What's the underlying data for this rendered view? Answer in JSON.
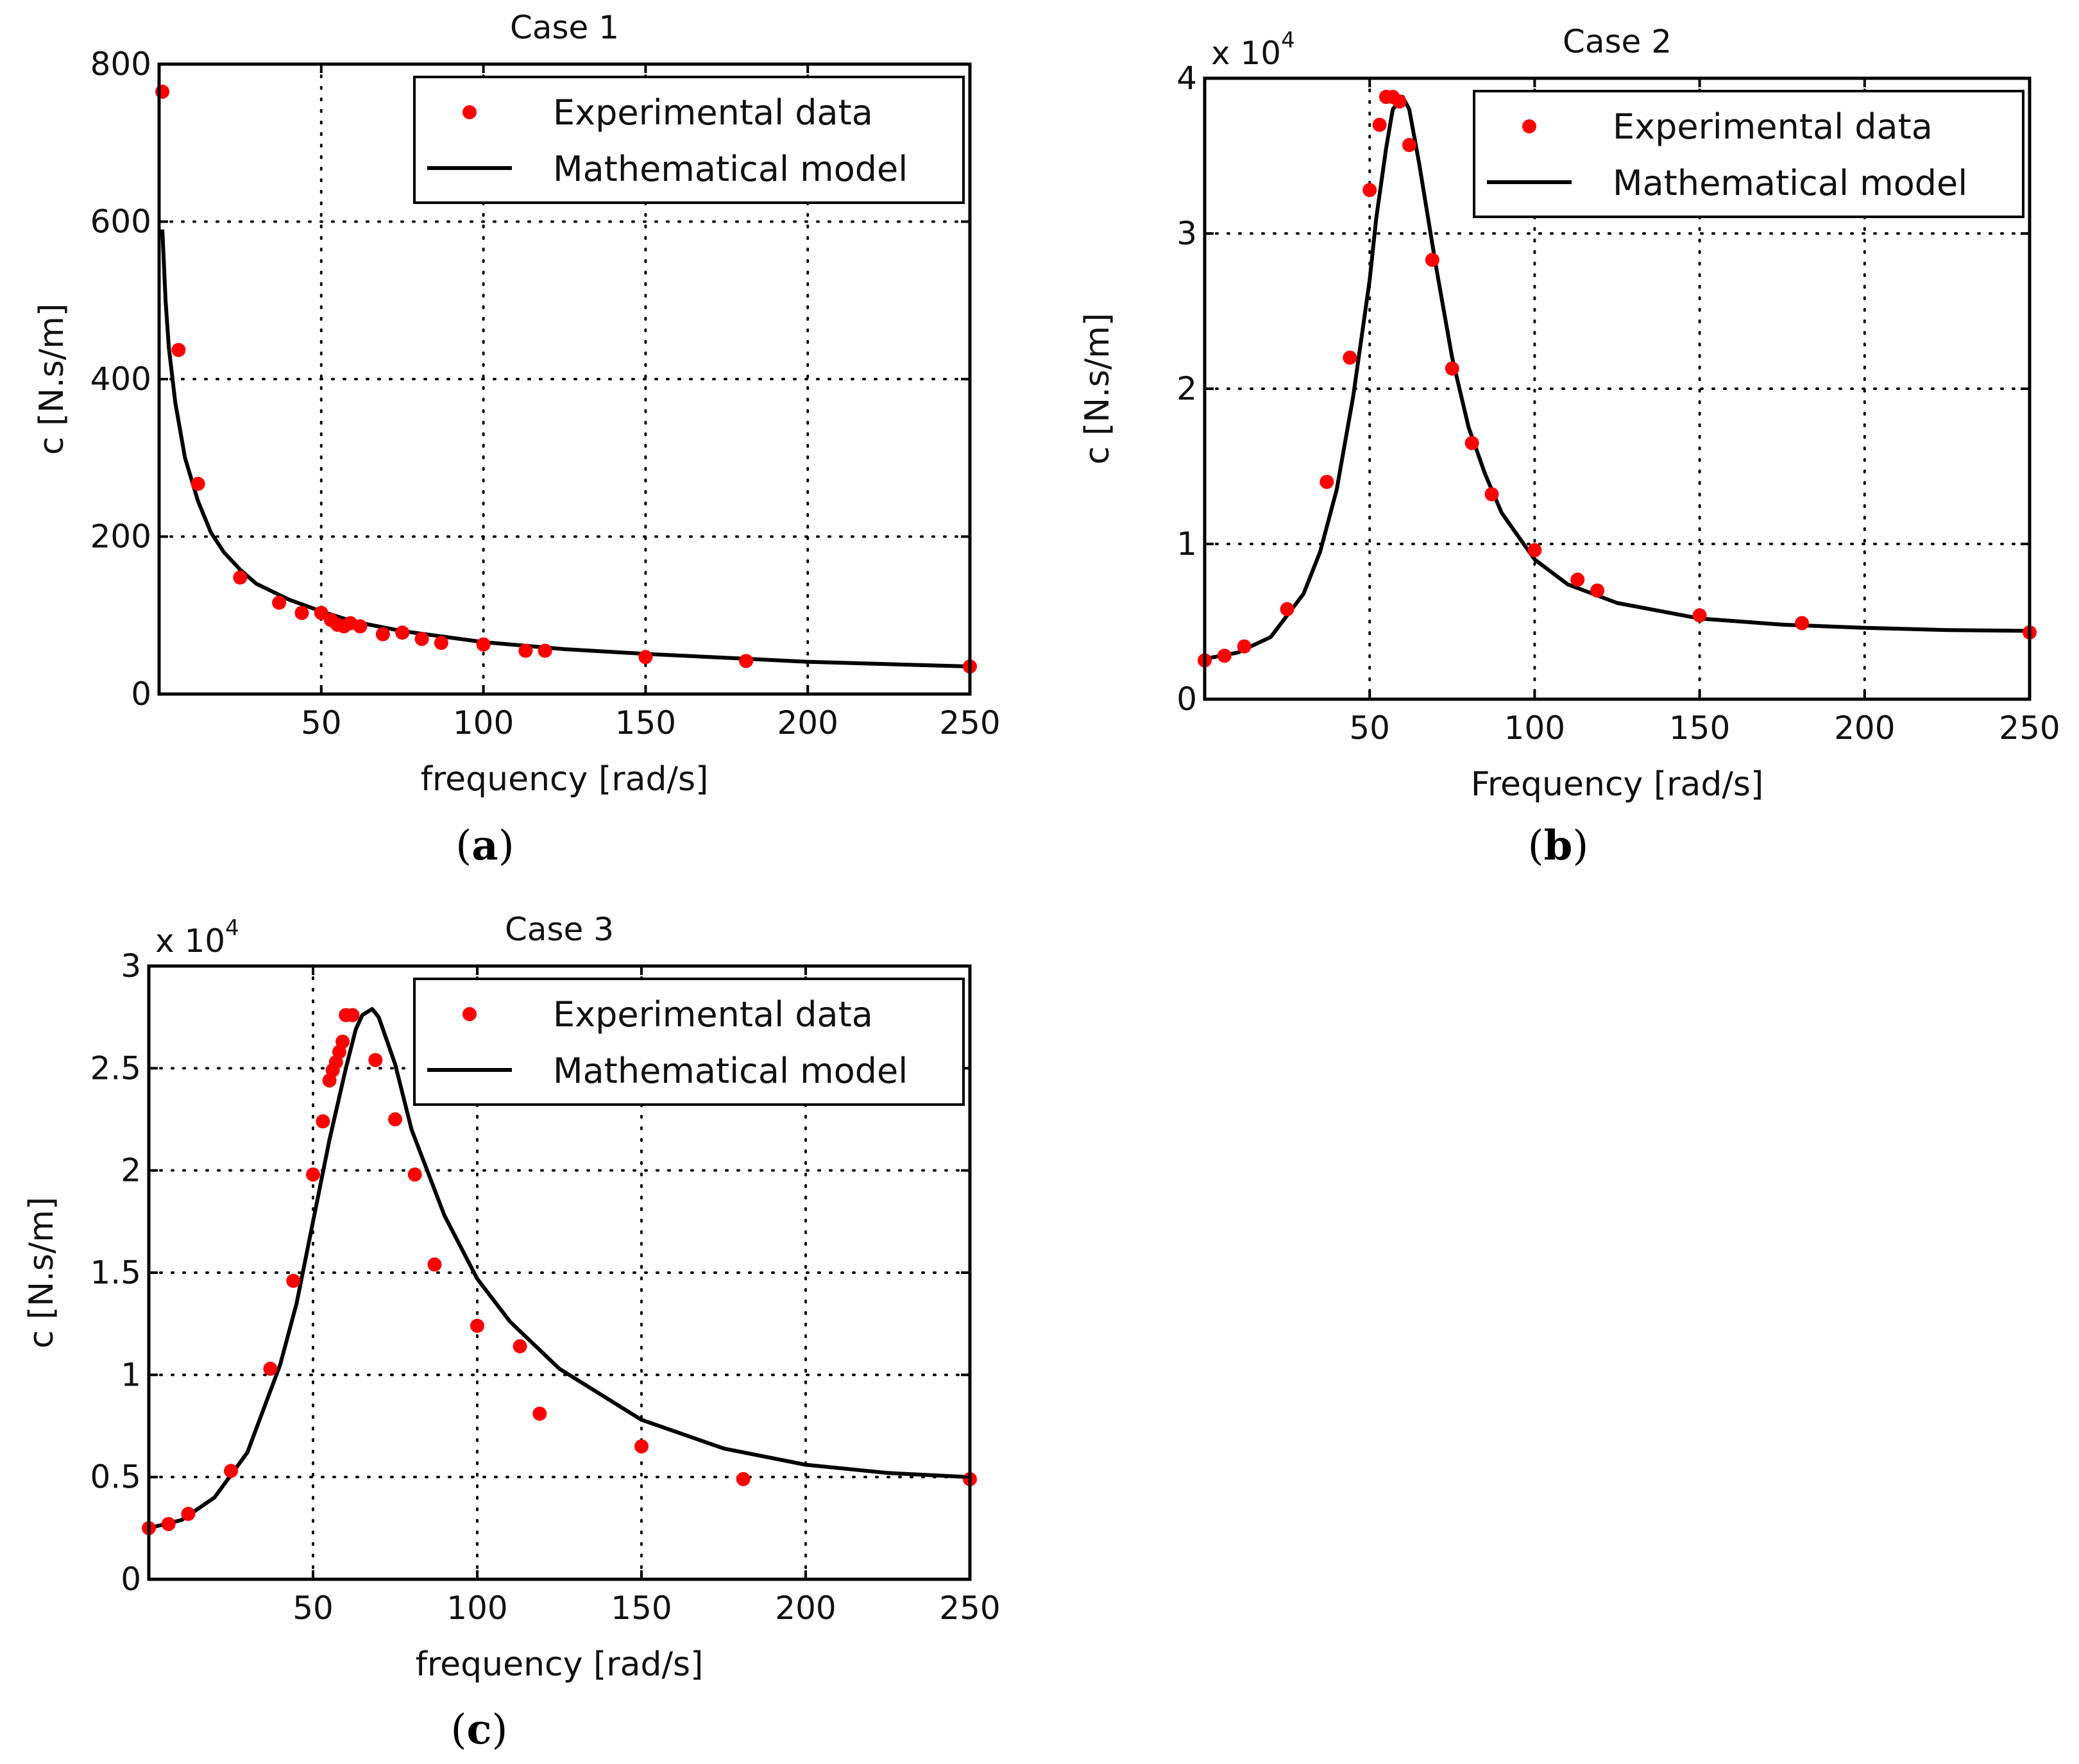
{
  "chart_data": [
    {
      "type": "scatter",
      "panel_label": "a",
      "title": "Case 1",
      "xlabel": "frequency [rad/s]",
      "ylabel": "c [N.s/m]",
      "xlim": [
        0,
        250
      ],
      "ylim": [
        0,
        800
      ],
      "x_ticks": [
        50,
        100,
        150,
        200,
        250
      ],
      "y_ticks": [
        0,
        200,
        400,
        600,
        800
      ],
      "exponent_label": "",
      "grid": true,
      "legend_position": "top-right",
      "series": [
        {
          "name": "Experimental data",
          "style": "markers",
          "color": "#ff0000",
          "x": [
            1,
            6,
            12,
            25,
            37,
            44,
            50,
            53,
            55,
            57,
            59,
            62,
            69,
            75,
            81,
            87,
            100,
            113,
            119,
            150,
            181,
            250
          ],
          "y": [
            765,
            437,
            267,
            148,
            116,
            103,
            103,
            94,
            88,
            86,
            90,
            86,
            76,
            78,
            70,
            65,
            63,
            55,
            55,
            47,
            42,
            35
          ]
        },
        {
          "name": "Mathematical model",
          "style": "line",
          "color": "#000000",
          "x": [
            1,
            2,
            3,
            5,
            8,
            12,
            16,
            20,
            25,
            30,
            40,
            50,
            60,
            75,
            100,
            125,
            150,
            175,
            200,
            225,
            250
          ],
          "y": [
            590,
            500,
            440,
            370,
            300,
            245,
            205,
            180,
            158,
            140,
            120,
            105,
            92,
            80,
            66,
            57,
            51,
            46,
            41,
            38,
            35
          ]
        }
      ]
    },
    {
      "type": "scatter",
      "panel_label": "b",
      "title": "Case 2",
      "xlabel": "Frequency [rad/s]",
      "ylabel": "c [N.s/m]",
      "xlim": [
        0,
        250
      ],
      "ylim": [
        0,
        40000
      ],
      "x_ticks": [
        50,
        100,
        150,
        200,
        250
      ],
      "y_ticks": [
        0,
        10000,
        20000,
        30000,
        40000
      ],
      "y_tick_labels": [
        "0",
        "1",
        "2",
        "3",
        "4"
      ],
      "exponent_label": "x 10",
      "exponent_power": "4",
      "grid": true,
      "legend_position": "top-right",
      "series": [
        {
          "name": "Experimental data",
          "style": "markers",
          "color": "#ff0000",
          "x": [
            0,
            6,
            12,
            25,
            37,
            44,
            50,
            53,
            55,
            57,
            59,
            62,
            69,
            75,
            81,
            87,
            100,
            113,
            119,
            150,
            181,
            250
          ],
          "y": [
            2500,
            2800,
            3400,
            5800,
            14000,
            22000,
            32800,
            37000,
            38800,
            38800,
            38500,
            35700,
            28300,
            21300,
            16500,
            13200,
            9600,
            7700,
            7000,
            5400,
            4900,
            4300
          ]
        },
        {
          "name": "Mathematical model",
          "style": "line",
          "color": "#000000",
          "x": [
            0,
            10,
            20,
            30,
            35,
            40,
            45,
            50,
            52,
            55,
            57,
            60,
            62,
            65,
            70,
            75,
            80,
            85,
            90,
            100,
            110,
            125,
            150,
            175,
            200,
            225,
            250
          ],
          "y": [
            2600,
            3000,
            4000,
            6800,
            9500,
            13500,
            19500,
            27000,
            31000,
            35500,
            38000,
            38800,
            38000,
            34500,
            28000,
            22000,
            17500,
            14500,
            12000,
            9000,
            7400,
            6200,
            5200,
            4800,
            4600,
            4450,
            4400
          ]
        }
      ]
    },
    {
      "type": "scatter",
      "panel_label": "c",
      "title": "Case 3",
      "xlabel": "frequency [rad/s]",
      "ylabel": "c [N.s/m]",
      "xlim": [
        0,
        250
      ],
      "ylim": [
        0,
        30000
      ],
      "x_ticks": [
        50,
        100,
        150,
        200,
        250
      ],
      "y_ticks": [
        0,
        5000,
        10000,
        15000,
        20000,
        25000,
        30000
      ],
      "y_tick_labels": [
        "0",
        "0.5",
        "1",
        "1.5",
        "2",
        "2.5",
        "3"
      ],
      "exponent_label": "x 10",
      "exponent_power": "4",
      "grid": true,
      "legend_position": "top-right",
      "series": [
        {
          "name": "Experimental data",
          "style": "markers",
          "color": "#ff0000",
          "x": [
            0,
            6,
            12,
            25,
            37,
            44,
            50,
            53,
            55,
            56,
            57,
            58,
            59,
            60,
            62,
            69,
            75,
            81,
            87,
            100,
            113,
            119,
            150,
            181,
            250
          ],
          "y": [
            2500,
            2700,
            3200,
            5300,
            10300,
            14600,
            19800,
            22400,
            24400,
            24900,
            25300,
            25800,
            26300,
            27600,
            27600,
            25400,
            22500,
            19800,
            15400,
            12400,
            11400,
            8100,
            6500,
            4900,
            4900
          ]
        },
        {
          "name": "Mathematical model",
          "style": "line",
          "color": "#000000",
          "x": [
            0,
            10,
            20,
            30,
            40,
            45,
            50,
            55,
            60,
            63,
            65,
            68,
            70,
            75,
            80,
            90,
            100,
            110,
            125,
            150,
            175,
            200,
            225,
            250
          ],
          "y": [
            2500,
            2900,
            4000,
            6200,
            10500,
            13500,
            17500,
            21500,
            25000,
            26900,
            27600,
            27900,
            27500,
            25200,
            22000,
            17800,
            14700,
            12600,
            10300,
            7800,
            6400,
            5600,
            5200,
            5000
          ]
        }
      ]
    }
  ]
}
